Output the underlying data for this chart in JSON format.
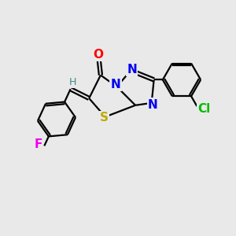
{
  "bg_color": "#e9e9e9",
  "bond_color": "#000000",
  "bond_width": 1.6,
  "atom_labels": {
    "O": {
      "color": "#ff0000",
      "fontsize": 11,
      "fontweight": "bold"
    },
    "N": {
      "color": "#0000ee",
      "fontsize": 11,
      "fontweight": "bold"
    },
    "S": {
      "color": "#bbaa00",
      "fontsize": 11,
      "fontweight": "bold"
    },
    "Cl": {
      "color": "#00bb00",
      "fontsize": 11,
      "fontweight": "bold"
    },
    "F": {
      "color": "#ee00ee",
      "fontsize": 11,
      "fontweight": "bold"
    },
    "H": {
      "color": "#448888",
      "fontsize": 9,
      "fontweight": "normal"
    }
  },
  "figsize": [
    3.0,
    3.0
  ],
  "dpi": 100
}
